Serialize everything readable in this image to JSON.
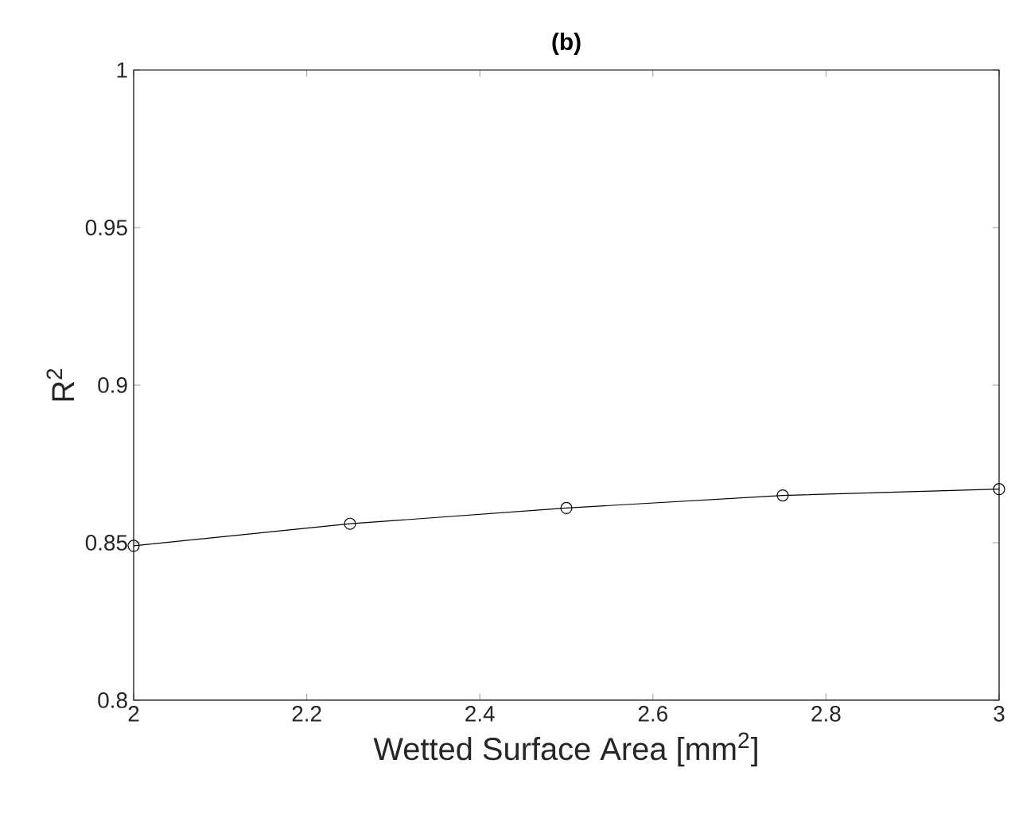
{
  "chart_data": {
    "type": "line",
    "title": "(b)",
    "xlabel": "Wetted Surface Area [mm$^{2}$]",
    "ylabel": "R$^{2}$",
    "x": [
      2,
      2.25,
      2.5,
      2.75,
      3
    ],
    "series": [
      {
        "color": "#000000",
        "values": [
          0.849,
          0.856,
          0.861,
          0.865,
          0.867
        ]
      }
    ],
    "xlim": [
      2,
      3
    ],
    "ylim": [
      0.8,
      1
    ],
    "xticks": [
      2,
      2.2,
      2.4,
      2.6,
      2.8,
      3
    ],
    "yticks": [
      0.8,
      0.85,
      0.9,
      0.95,
      1
    ],
    "grid": false,
    "marker": "circle",
    "line_style": "solid"
  }
}
